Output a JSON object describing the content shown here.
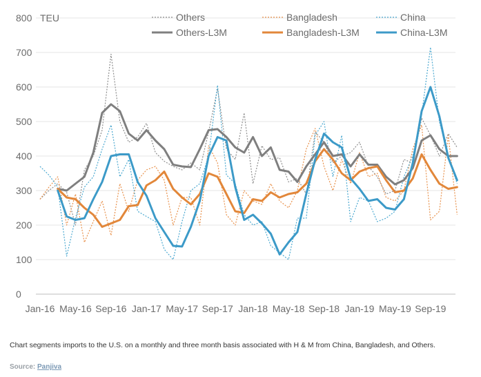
{
  "chart_data": {
    "type": "line",
    "ylabel": "TEU",
    "ylim": [
      0,
      800
    ],
    "yticks": [
      0,
      100,
      200,
      300,
      400,
      500,
      600,
      700,
      800
    ],
    "x_tick_labels": [
      "Jan-16",
      "May-16",
      "Sep-16",
      "Jan-17",
      "May-17",
      "Sep-17",
      "Jan-18",
      "May-18",
      "Sep-18",
      "Jan-19",
      "May-19",
      "Sep-19"
    ],
    "x_tick_months": [
      0,
      4,
      8,
      12,
      16,
      20,
      24,
      28,
      32,
      36,
      40,
      44
    ],
    "grid": "horizontal",
    "legend_position": "top",
    "series": [
      {
        "name": "Others",
        "style": "dotted",
        "color": "#8c8c8c",
        "start_month": 0,
        "values": [
          275,
          300,
          320,
          295,
          200,
          360,
          400,
          475,
          695,
          500,
          440,
          455,
          495,
          410,
          385,
          370,
          360,
          380,
          360,
          470,
          595,
          420,
          390,
          525,
          320,
          430,
          390,
          395,
          325,
          335,
          290,
          470,
          440,
          380,
          400,
          410,
          440,
          370,
          340,
          290,
          300,
          390,
          380,
          510,
          460,
          400,
          465,
          425
        ]
      },
      {
        "name": "Bangladesh",
        "style": "dotted",
        "color": "#e8904a",
        "start_month": 0,
        "values": [
          275,
          310,
          340,
          200,
          290,
          150,
          210,
          270,
          170,
          320,
          240,
          330,
          360,
          370,
          330,
          200,
          280,
          280,
          200,
          430,
          380,
          230,
          200,
          300,
          270,
          260,
          320,
          270,
          250,
          300,
          420,
          480,
          370,
          300,
          390,
          320,
          410,
          340,
          350,
          280,
          270,
          300,
          420,
          490,
          215,
          240,
          460,
          230
        ]
      },
      {
        "name": "China",
        "style": "dotted",
        "color": "#4aa8d0",
        "start_month": 0,
        "values": [
          370,
          345,
          310,
          110,
          220,
          310,
          340,
          420,
          490,
          340,
          390,
          240,
          225,
          210,
          130,
          100,
          210,
          300,
          320,
          400,
          605,
          345,
          320,
          230,
          200,
          210,
          140,
          120,
          100,
          220,
          220,
          460,
          500,
          340,
          460,
          210,
          280,
          270,
          210,
          220,
          240,
          340,
          400,
          520,
          715,
          500,
          400,
          320
        ]
      },
      {
        "name": "Others-L3M",
        "style": "solid",
        "color": "#7f7f7f",
        "start_month": 2,
        "values": [
          305,
          300,
          320,
          340,
          410,
          525,
          550,
          530,
          465,
          445,
          475,
          445,
          420,
          375,
          370,
          368,
          420,
          475,
          478,
          455,
          425,
          410,
          455,
          400,
          425,
          360,
          355,
          325,
          370,
          405,
          440,
          400,
          405,
          370,
          405,
          375,
          375,
          340,
          318,
          330,
          365,
          445,
          460,
          420,
          400,
          400
        ]
      },
      {
        "name": "Bangladesh-L3M",
        "style": "solid",
        "color": "#e2873a",
        "start_month": 2,
        "values": [
          305,
          280,
          275,
          250,
          230,
          195,
          205,
          215,
          255,
          258,
          315,
          330,
          355,
          305,
          280,
          260,
          290,
          350,
          340,
          290,
          240,
          235,
          275,
          270,
          295,
          280,
          290,
          295,
          320,
          385,
          420,
          390,
          350,
          330,
          355,
          365,
          370,
          330,
          295,
          300,
          335,
          405,
          360,
          320,
          305,
          310
        ]
      },
      {
        "name": "China-L3M",
        "style": "solid",
        "color": "#3c9ac8",
        "start_month": 2,
        "values": [
          300,
          225,
          215,
          220,
          275,
          325,
          400,
          405,
          405,
          325,
          285,
          220,
          180,
          140,
          138,
          195,
          270,
          400,
          455,
          445,
          310,
          215,
          230,
          205,
          175,
          115,
          150,
          180,
          290,
          390,
          465,
          440,
          425,
          335,
          305,
          270,
          275,
          250,
          245,
          275,
          380,
          530,
          600,
          515,
          395,
          330
        ]
      }
    ]
  },
  "caption": "Chart segments imports to the U.S. on a monthly and three month basis associated with H & M from China, Bangladesh, and Others.",
  "source_label": "Source:",
  "source_link": "Panjiva"
}
